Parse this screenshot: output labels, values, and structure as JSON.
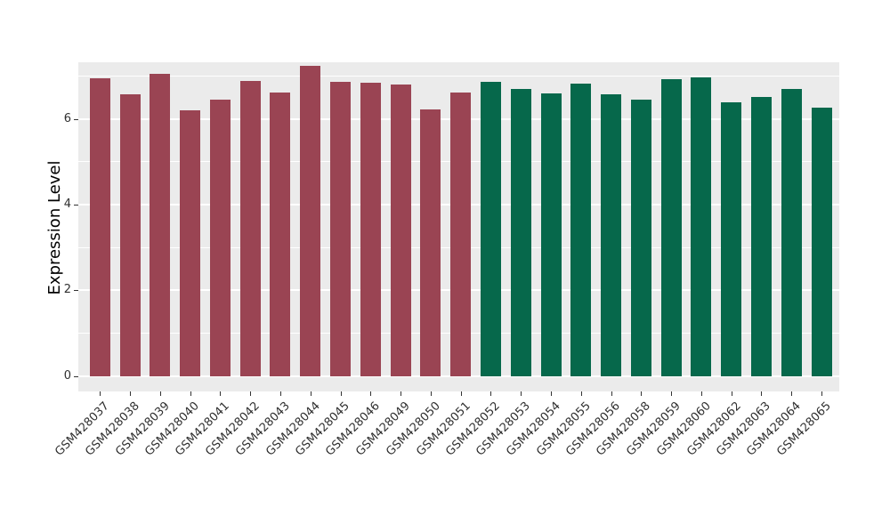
{
  "chart_data": {
    "type": "bar",
    "title": "",
    "xlabel": "",
    "ylabel": "Expression Level",
    "ylim": [
      -0.36,
      7.32
    ],
    "y_major_ticks": [
      0,
      2,
      4,
      6
    ],
    "y_minor_gridlines": [
      1,
      3,
      5,
      7
    ],
    "grid": "on",
    "legend": "none",
    "panel_background": "#EBEBEB",
    "gridline_color": "#FFFFFF",
    "tick_color": "#333333",
    "colors": {
      "group1": "#9A4453",
      "group2": "#06684B"
    },
    "categories": [
      "GSM428037",
      "GSM428038",
      "GSM428039",
      "GSM428040",
      "GSM428041",
      "GSM428042",
      "GSM428043",
      "GSM428044",
      "GSM428045",
      "GSM428046",
      "GSM428049",
      "GSM428050",
      "GSM428051",
      "GSM428052",
      "GSM428053",
      "GSM428054",
      "GSM428055",
      "GSM428056",
      "GSM428058",
      "GSM428059",
      "GSM428060",
      "GSM428062",
      "GSM428063",
      "GSM428064",
      "GSM428065"
    ],
    "values": [
      6.94,
      6.57,
      7.05,
      6.19,
      6.45,
      6.88,
      6.61,
      7.24,
      6.86,
      6.84,
      6.81,
      6.22,
      6.61,
      6.86,
      6.7,
      6.59,
      6.83,
      6.57,
      6.45,
      6.92,
      6.96,
      6.38,
      6.51,
      6.7,
      6.26
    ],
    "groups": [
      "group1",
      "group1",
      "group1",
      "group1",
      "group1",
      "group1",
      "group1",
      "group1",
      "group1",
      "group1",
      "group1",
      "group1",
      "group1",
      "group2",
      "group2",
      "group2",
      "group2",
      "group2",
      "group2",
      "group2",
      "group2",
      "group2",
      "group2",
      "group2",
      "group2"
    ]
  }
}
